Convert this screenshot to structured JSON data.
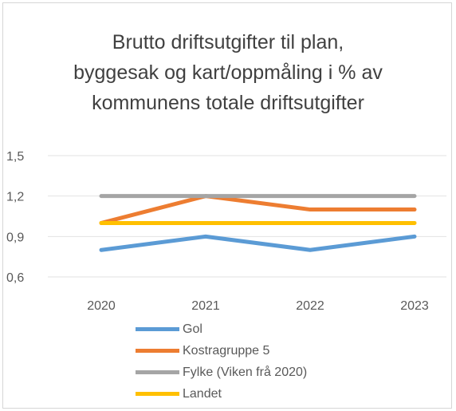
{
  "chart_data": {
    "type": "line",
    "title_lines": [
      "Brutto driftsutgifter til plan,",
      "byggesak og kart/oppmåling i % av",
      "kommunens totale driftsutgifter"
    ],
    "categories": [
      "2020",
      "2021",
      "2022",
      "2023"
    ],
    "y_ticks": [
      "0,6",
      "0,9",
      "1,2",
      "1,5"
    ],
    "ylim": [
      0.6,
      1.5
    ],
    "grid": true,
    "legend_position": "bottom",
    "series": [
      {
        "name": "Gol",
        "color": "#5b9bd5",
        "values": [
          0.8,
          0.9,
          0.8,
          0.9
        ]
      },
      {
        "name": "Kostragruppe 5",
        "color": "#ed7d31",
        "values": [
          1.0,
          1.2,
          1.1,
          1.1
        ]
      },
      {
        "name": "Fylke (Viken frå 2020)",
        "color": "#a5a5a5",
        "values": [
          1.2,
          1.2,
          1.2,
          1.2
        ]
      },
      {
        "name": "Landet",
        "color": "#ffc000",
        "values": [
          1.0,
          1.0,
          1.0,
          1.0
        ]
      }
    ]
  }
}
